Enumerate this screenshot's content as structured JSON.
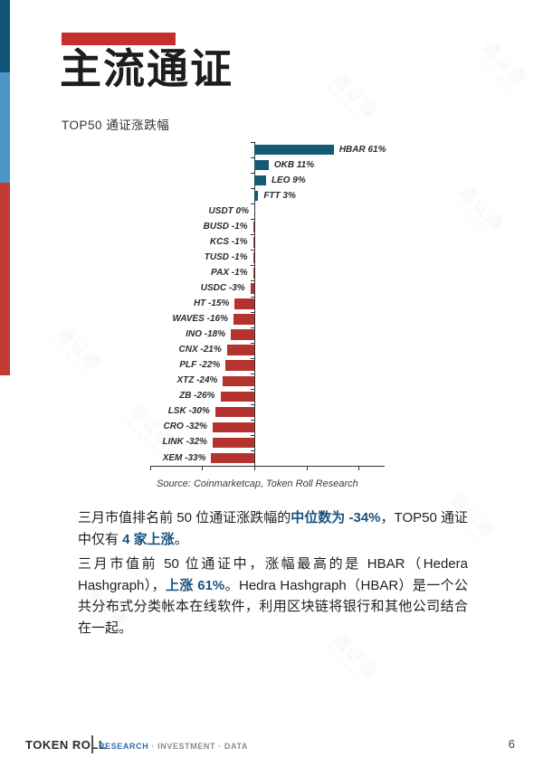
{
  "header": {
    "title": "主流通证",
    "subtitle": "TOP50 通证涨跌幅"
  },
  "chart_data": {
    "type": "bar",
    "orientation": "horizontal",
    "title": "TOP50 通证涨跌幅",
    "categories": [
      "HBAR",
      "OKB",
      "LEO",
      "FTT",
      "USDT",
      "BUSD",
      "KCS",
      "TUSD",
      "PAX",
      "USDC",
      "HT",
      "WAVES",
      "INO",
      "CNX",
      "PLF",
      "XTZ",
      "ZB",
      "LSK",
      "CRO",
      "LINK",
      "XEM"
    ],
    "values": [
      61,
      11,
      9,
      3,
      0,
      -1,
      -1,
      -1,
      -1,
      -3,
      -15,
      -16,
      -18,
      -21,
      -22,
      -24,
      -26,
      -30,
      -32,
      -32,
      -33
    ],
    "value_suffix": "%",
    "xlim": [
      -80,
      100
    ],
    "xticks": [
      -80,
      -40,
      0,
      40,
      80
    ],
    "grid": false,
    "legend": "none",
    "positive_color": "#155a73",
    "negative_color": "#b5332f",
    "source": "Source: Coinmarketcap, Token Roll Research"
  },
  "paragraphs": [
    {
      "segments": [
        {
          "text": "三月市值排名前 50 位通证涨跌幅的",
          "highlight": false
        },
        {
          "text": "中位数为 -34%",
          "highlight": true
        },
        {
          "text": "，TOP50 通证中仅有 ",
          "highlight": false
        },
        {
          "text": "4 家上涨",
          "highlight": true
        },
        {
          "text": "。",
          "highlight": false
        }
      ]
    },
    {
      "segments": [
        {
          "text": "三月市值前 50 位通证中，涨幅最高的是 HBAR（Hedera Hashgraph），",
          "highlight": false
        },
        {
          "text": "上涨 61%",
          "highlight": true
        },
        {
          "text": "。Hedra Hashgraph（HBAR）是一个公共分布式分类帐本在线软件，利用区块链将银行和其他公司结合在一起。",
          "highlight": false
        }
      ]
    }
  ],
  "footer": {
    "brand": "TOKEN ROLL",
    "tagline_research": "RESEARCH",
    "tagline_rest": "· INVESTMENT · DATA",
    "page_number": "6"
  },
  "watermark": {
    "line1": "通证通",
    "line2": "TOKEN ROLL"
  },
  "theme": {
    "accent_red": "#c5302c",
    "strip_dark_blue": "#11547a",
    "strip_light_blue": "#4a96c5",
    "strip_red": "#c03a33",
    "highlight_blue": "#1a527e",
    "bar_positive": "#155a73",
    "bar_negative": "#b5332f",
    "footer_blue": "#2d6da3"
  }
}
